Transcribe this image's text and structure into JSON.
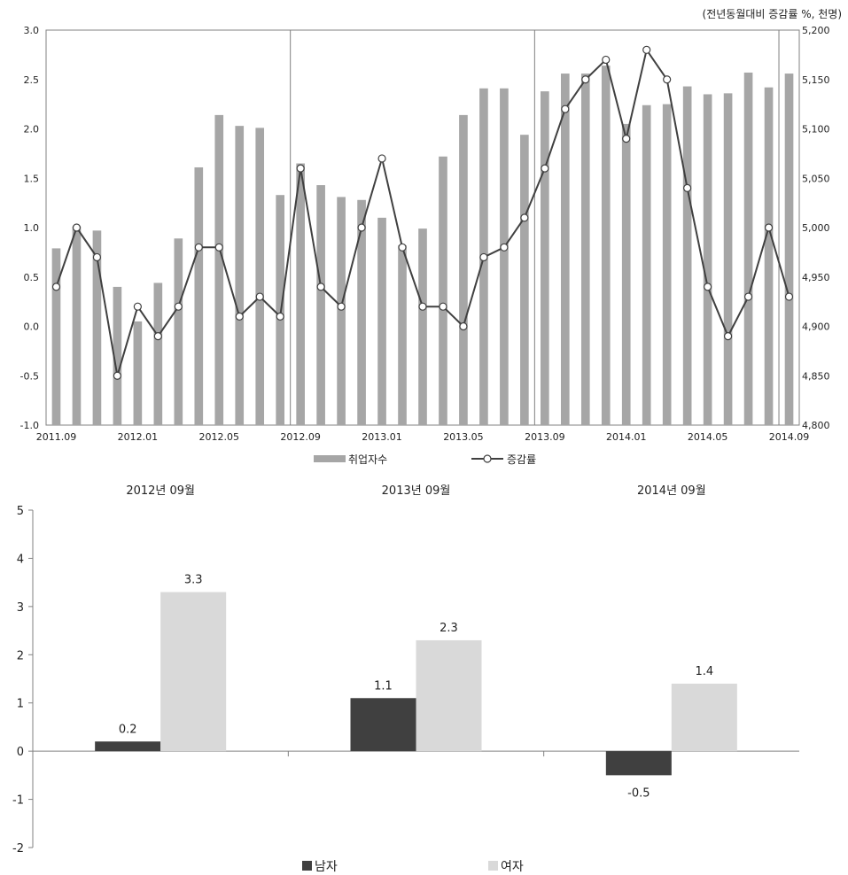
{
  "chart_data": [
    {
      "type": "bar+line",
      "unit_note": "(전년동월대비 증감률 %, 천명)",
      "x_tick_labels": [
        "2011.09",
        "2012.01",
        "2012.05",
        "2012.09",
        "2013.01",
        "2013.05",
        "2013.09",
        "2014.01",
        "2014.05",
        "2014.09"
      ],
      "left_axis": {
        "min": -1.0,
        "max": 3.0,
        "step": 0.5,
        "ticks": [
          "3.0",
          "2.5",
          "2.0",
          "1.5",
          "1.0",
          "0.5",
          "0.0",
          "-0.5",
          "-1.0"
        ]
      },
      "right_axis": {
        "min": 4800,
        "max": 5200,
        "step": 50,
        "ticks": [
          "5,200",
          "5,150",
          "5,100",
          "5,050",
          "5,000",
          "4,950",
          "4,900",
          "4,850",
          "4,800"
        ]
      },
      "months": [
        "2011.09",
        "2011.10",
        "2011.11",
        "2011.12",
        "2012.01",
        "2012.02",
        "2012.03",
        "2012.04",
        "2012.05",
        "2012.06",
        "2012.07",
        "2012.08",
        "2012.09",
        "2012.10",
        "2012.11",
        "2012.12",
        "2013.01",
        "2013.02",
        "2013.03",
        "2013.04",
        "2013.05",
        "2013.06",
        "2013.07",
        "2013.08",
        "2013.09",
        "2013.10",
        "2013.11",
        "2013.12",
        "2014.01",
        "2014.02",
        "2014.03",
        "2014.04",
        "2014.05",
        "2014.06",
        "2014.07",
        "2014.08",
        "2014.09"
      ],
      "series": [
        {
          "name": "취업자수",
          "kind": "bar",
          "axis": "right",
          "values": [
            4979,
            5001,
            4997,
            4940,
            4905,
            4944,
            4989,
            5061,
            5114,
            5103,
            5101,
            5033,
            5065,
            5043,
            5031,
            5028,
            5010,
            4982,
            4999,
            5072,
            5114,
            5141,
            5141,
            5094,
            5138,
            5156,
            5156,
            5164,
            5105,
            5124,
            5125,
            5143,
            5135,
            5136,
            5157,
            5142,
            5156
          ]
        },
        {
          "name": "증감률",
          "kind": "line",
          "axis": "left",
          "values": [
            0.4,
            1.0,
            0.7,
            -0.5,
            0.2,
            -0.1,
            0.2,
            0.8,
            0.8,
            0.1,
            0.3,
            0.1,
            1.6,
            0.4,
            0.2,
            1.0,
            1.7,
            0.8,
            0.2,
            0.2,
            0.0,
            0.7,
            0.8,
            1.1,
            1.6,
            2.2,
            2.5,
            2.7,
            1.9,
            2.8,
            2.5,
            1.4,
            0.4,
            -0.1,
            0.3,
            1.0,
            0.3
          ]
        }
      ]
    },
    {
      "type": "bar",
      "categories": [
        "2012년 09월",
        "2013년 09월",
        "2014년 09월"
      ],
      "ylim": [
        -2,
        5
      ],
      "y_ticks": [
        "5",
        "4",
        "3",
        "2",
        "1",
        "0",
        "-1",
        "-2"
      ],
      "series": [
        {
          "name": "남자",
          "values": [
            0.2,
            1.1,
            -0.5
          ],
          "labels": [
            "0.2",
            "1.1",
            "-0.5"
          ]
        },
        {
          "name": "여자",
          "values": [
            3.3,
            2.3,
            1.4
          ],
          "labels": [
            "3.3",
            "2.3",
            "1.4"
          ]
        }
      ]
    }
  ],
  "colors": {
    "bar_light": "#a6a6a6",
    "line": "#404040",
    "male": "#404040",
    "female": "#d9d9d9",
    "grid": "#808080"
  }
}
